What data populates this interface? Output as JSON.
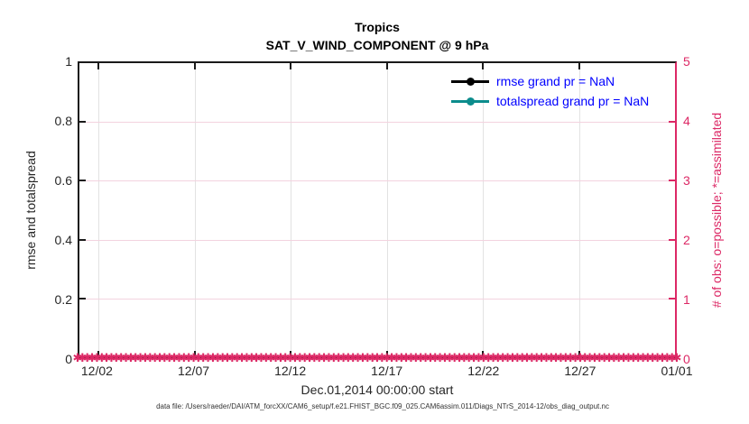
{
  "figure": {
    "title": "Tropics",
    "subtitle": "SAT_V_WIND_COMPONENT @ 9 hPa",
    "xlabel": "Dec.01,2014 00:00:00 start",
    "ylabel_left": "rmse and totalspread",
    "ylabel_right": "# of obs: o=possible; *=assimilated",
    "footer": "data file: /Users/raeder/DAI/ATM_forcXX/CAM6_setup/f.e21.FHIST_BGC.f09_025.CAM6assim.011/Diags_NTrS_2014-12/obs_diag_output.nc"
  },
  "legend": {
    "text_color": "#0000ff",
    "items": [
      {
        "label": "rmse grand pr = NaN",
        "color": "#000000"
      },
      {
        "label": "totalspread grand pr = NaN",
        "color": "#0c8c8c"
      }
    ]
  },
  "colors": {
    "axis_black": "#1a1a1a",
    "obs_pink": "#dc2865",
    "grid_gray": "#e2e2e2",
    "grid_pink": "#f3d3df",
    "legend_text_blue": "#0000ff",
    "rmse_black": "#000000",
    "totalspread_teal": "#0c8c8c"
  },
  "chart_data": {
    "type": "line",
    "title": "Tropics",
    "subtitle": "SAT_V_WIND_COMPONENT @ 9 hPa",
    "xlabel": "Dec.01,2014 00:00:00 start",
    "x_axis": {
      "range_days": [
        0,
        31
      ],
      "tick_days": [
        1,
        6,
        11,
        16,
        21,
        26,
        31
      ],
      "tick_labels": [
        "12/02",
        "12/07",
        "12/12",
        "12/17",
        "12/22",
        "12/27",
        "01/01"
      ]
    },
    "y_left": {
      "label": "rmse and totalspread",
      "lim": [
        0,
        1
      ],
      "ticks": [
        0,
        0.2,
        0.4,
        0.6,
        0.8,
        1
      ],
      "tick_labels": [
        "0",
        "0.2",
        "0.4",
        "0.6",
        "0.8",
        "1"
      ]
    },
    "y_right": {
      "label": "# of obs: o=possible; *=assimilated",
      "lim": [
        0,
        5
      ],
      "ticks": [
        0,
        1,
        2,
        3,
        4,
        5
      ],
      "tick_labels": [
        "0",
        "1",
        "2",
        "3",
        "4",
        "5"
      ]
    },
    "series": [
      {
        "name": "rmse",
        "grand_pr": "NaN",
        "color": "#000000",
        "values": []
      },
      {
        "name": "totalspread",
        "grand_pr": "NaN",
        "color": "#0c8c8c",
        "values": []
      }
    ],
    "obs_markers": {
      "marker": "✱",
      "color": "#dc2865",
      "value": 0,
      "count": 125
    },
    "grid": true,
    "legend_position": "upper-right-inside"
  }
}
